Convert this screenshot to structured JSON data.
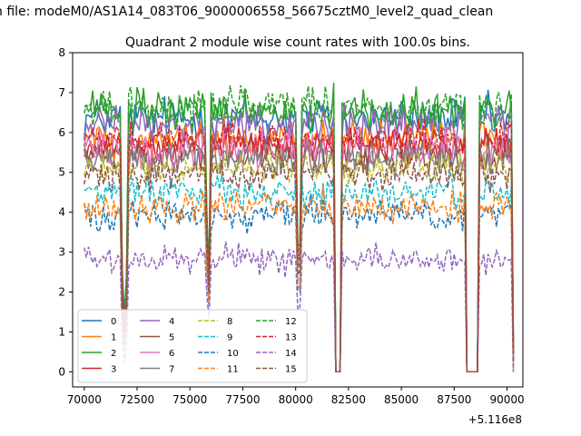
{
  "chart_data": {
    "type": "line",
    "suptitle": "n file: modeM0/AS1A14_083T06_9000006558_56675cztM0_level2_quad_clean",
    "title": "Quadrant 2 module wise count rates with 100.0s bins.",
    "xlabel": "",
    "ylabel": "",
    "x_offset_label": "+5.116e8",
    "xlim": [
      69450,
      90750
    ],
    "ylim": [
      -0.38,
      8.0
    ],
    "x_ticks": [
      70000,
      72500,
      75000,
      77500,
      80000,
      82500,
      85000,
      87500,
      90000
    ],
    "x_tick_labels": [
      "70000",
      "72500",
      "75000",
      "77500",
      "80000",
      "82500",
      "85000",
      "87500",
      "90000"
    ],
    "y_ticks": [
      0,
      1,
      2,
      3,
      4,
      5,
      6,
      7,
      8
    ],
    "y_tick_labels": [
      "0",
      "1",
      "2",
      "3",
      "4",
      "5",
      "6",
      "7",
      "8"
    ],
    "time_start": 70000,
    "time_end": 90350,
    "bin_size_s": 100,
    "dropouts": [
      {
        "start": 71700,
        "end": 72100,
        "min": 0.9
      },
      {
        "start": 75750,
        "end": 76000,
        "min": 2.0
      },
      {
        "start": 80050,
        "end": 80250,
        "min": 1.9
      },
      {
        "start": 81900,
        "end": 82150,
        "min": 0.0
      },
      {
        "start": 88050,
        "end": 88600,
        "min": 0.0
      },
      {
        "start": 90250,
        "end": 90350,
        "min": 0.25
      }
    ],
    "series": [
      {
        "name": "0",
        "color": "#1f77b4",
        "style": "solid",
        "mean": 6.35,
        "noise": 0.28
      },
      {
        "name": "1",
        "color": "#ff7f0e",
        "style": "solid",
        "mean": 5.85,
        "noise": 0.25
      },
      {
        "name": "2",
        "color": "#2ca02c",
        "style": "solid",
        "mean": 6.55,
        "noise": 0.28
      },
      {
        "name": "3",
        "color": "#d62728",
        "style": "solid",
        "mean": 5.7,
        "noise": 0.22
      },
      {
        "name": "4",
        "color": "#9467bd",
        "style": "solid",
        "mean": 6.15,
        "noise": 0.25
      },
      {
        "name": "5",
        "color": "#8c564b",
        "style": "solid",
        "mean": 5.45,
        "noise": 0.22
      },
      {
        "name": "6",
        "color": "#e377c2",
        "style": "solid",
        "mean": 5.6,
        "noise": 0.25
      },
      {
        "name": "7",
        "color": "#7f7f7f",
        "style": "solid",
        "mean": 5.3,
        "noise": 0.22
      },
      {
        "name": "8",
        "color": "#bcbd22",
        "style": "dashed",
        "mean": 5.1,
        "noise": 0.2
      },
      {
        "name": "9",
        "color": "#17becf",
        "style": "dashed",
        "mean": 4.5,
        "noise": 0.2
      },
      {
        "name": "10",
        "color": "#1f77b4",
        "style": "dashed",
        "mean": 3.95,
        "noise": 0.2
      },
      {
        "name": "11",
        "color": "#ff7f0e",
        "style": "dashed",
        "mean": 4.15,
        "noise": 0.2
      },
      {
        "name": "12",
        "color": "#2ca02c",
        "style": "dashed",
        "mean": 6.6,
        "noise": 0.25
      },
      {
        "name": "13",
        "color": "#d62728",
        "style": "dashed",
        "mean": 5.85,
        "noise": 0.22
      },
      {
        "name": "14",
        "color": "#9467bd",
        "style": "dashed",
        "mean": 2.8,
        "noise": 0.18
      },
      {
        "name": "15",
        "color": "#8c564b",
        "style": "dashed",
        "mean": 4.95,
        "noise": 0.22
      }
    ],
    "legend": {
      "placement": "lower-left",
      "columns": 4
    }
  }
}
